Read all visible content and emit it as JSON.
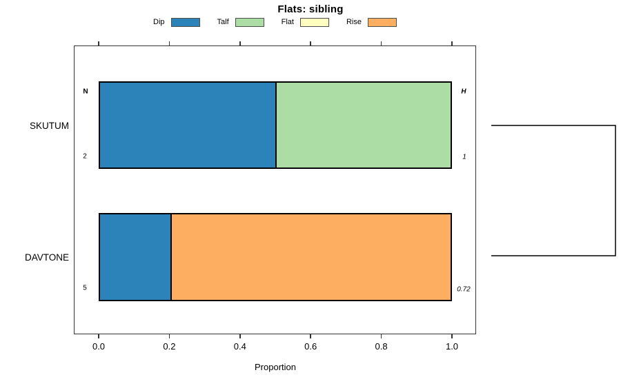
{
  "title": "Flats: sibling",
  "chart_data": {
    "type": "bar",
    "stacked": true,
    "orientation": "horizontal",
    "title": "Flats: sibling",
    "xlabel": "Proportion",
    "xlim": [
      0,
      1
    ],
    "x_ticks": [
      "0.0",
      "0.2",
      "0.4",
      "0.6",
      "0.8",
      "1.0"
    ],
    "grid": false,
    "legend_position": "top",
    "axis_ticks_on": "top-and-bottom",
    "left_header": "N",
    "right_header": "H",
    "categories": [
      "SKUTUM",
      "DAVTONE"
    ],
    "legend": [
      {
        "label": "Dip",
        "color": "#2B83BA"
      },
      {
        "label": "Talf",
        "color": "#ABDDA4"
      },
      {
        "label": "Flat",
        "color": "#FFFFBF"
      },
      {
        "label": "Rise",
        "color": "#FDAE61"
      }
    ],
    "rows": [
      {
        "category": "SKUTUM",
        "n": "2",
        "h": "1",
        "segments": [
          {
            "name": "Dip",
            "value": 0.5
          },
          {
            "name": "Talf",
            "value": 0.5
          }
        ]
      },
      {
        "category": "DAVTONE",
        "n": "5",
        "h": "0.72",
        "segments": [
          {
            "name": "Dip",
            "value": 0.2
          },
          {
            "name": "Rise",
            "value": 0.8
          }
        ]
      }
    ],
    "cluster_bracket": {
      "connects": [
        "SKUTUM",
        "DAVTONE"
      ],
      "side": "right"
    }
  }
}
